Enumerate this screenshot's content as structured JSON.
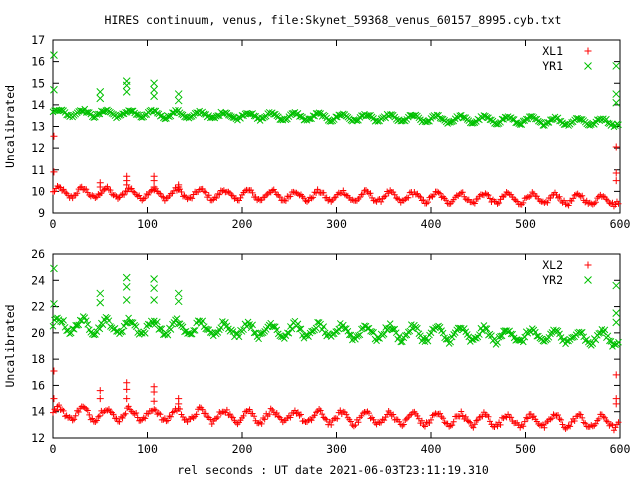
{
  "title": "HIRES continuum, venus, file:Skynet_59368_venus_60157_8995.cyb.txt",
  "xlabel": "rel seconds : UT date 2021-06-03T23:11:19.310",
  "colors": {
    "red": "#ff0000",
    "green": "#00c000"
  },
  "chart_data": [
    {
      "type": "scatter",
      "ylabel": "Uncalibrated",
      "xlim": [
        0,
        600
      ],
      "ylim": [
        9,
        17
      ],
      "x_ticks": [
        0,
        100,
        200,
        300,
        400,
        500,
        600
      ],
      "y_ticks": [
        9,
        10,
        11,
        12,
        13,
        14,
        15,
        16,
        17
      ],
      "legend_position": "top-right",
      "series": [
        {
          "name": "XL1",
          "marker": "plus",
          "color": "#ff0000",
          "model": {
            "base_start": 9.95,
            "base_end": 9.6,
            "amp": 0.22,
            "period": 25
          },
          "spikes": [
            {
              "x": 1,
              "y": [
                12.55,
                10.9
              ]
            },
            {
              "x": 50,
              "y": [
                10.4,
                10.2
              ]
            },
            {
              "x": 78,
              "y": [
                10.7,
                10.5,
                10.3
              ]
            },
            {
              "x": 107,
              "y": [
                10.7,
                10.5,
                10.2
              ]
            },
            {
              "x": 133,
              "y": [
                10.3,
                10.2
              ]
            },
            {
              "x": 596,
              "y": [
                12.05,
                10.85,
                10.5
              ]
            }
          ]
        },
        {
          "name": "YR1",
          "marker": "cross",
          "color": "#00c000",
          "model": {
            "base_start": 13.65,
            "base_end": 13.2,
            "amp": 0.15,
            "period": 25
          },
          "spikes": [
            {
              "x": 1,
              "y": [
                16.3,
                14.7
              ]
            },
            {
              "x": 50,
              "y": [
                14.6,
                14.3
              ]
            },
            {
              "x": 78,
              "y": [
                15.1,
                14.9,
                14.6
              ]
            },
            {
              "x": 107,
              "y": [
                15.0,
                14.7,
                14.4
              ]
            },
            {
              "x": 133,
              "y": [
                14.5,
                14.2
              ]
            },
            {
              "x": 596,
              "y": [
                15.8,
                14.5,
                14.1
              ]
            }
          ]
        }
      ]
    },
    {
      "type": "scatter",
      "ylabel": "Uncalibrated",
      "xlim": [
        0,
        600
      ],
      "ylim": [
        12,
        26
      ],
      "x_ticks": [
        0,
        100,
        200,
        300,
        400,
        500,
        600
      ],
      "y_ticks": [
        12,
        14,
        16,
        18,
        20,
        22,
        24,
        26
      ],
      "legend_position": "top-right",
      "series": [
        {
          "name": "XL2",
          "marker": "plus",
          "color": "#ff0000",
          "model": {
            "base_start": 13.9,
            "base_end": 13.2,
            "amp": 0.45,
            "period": 25
          },
          "spikes": [
            {
              "x": 1,
              "y": [
                17.1,
                15.0
              ]
            },
            {
              "x": 50,
              "y": [
                15.6,
                15.0
              ]
            },
            {
              "x": 78,
              "y": [
                16.2,
                15.7,
                15.0
              ]
            },
            {
              "x": 107,
              "y": [
                15.9,
                15.5,
                14.8
              ]
            },
            {
              "x": 133,
              "y": [
                15.0,
                14.6
              ]
            },
            {
              "x": 596,
              "y": [
                16.8,
                15.0,
                14.6
              ]
            }
          ]
        },
        {
          "name": "YR2",
          "marker": "cross",
          "color": "#00c000",
          "model": {
            "base_start": 20.6,
            "base_end": 19.6,
            "amp": 0.5,
            "period": 25
          },
          "spikes": [
            {
              "x": 1,
              "y": [
                24.9,
                22.2
              ]
            },
            {
              "x": 50,
              "y": [
                23.0,
                22.3
              ]
            },
            {
              "x": 78,
              "y": [
                24.2,
                23.5,
                22.5
              ]
            },
            {
              "x": 107,
              "y": [
                24.1,
                23.4,
                22.5
              ]
            },
            {
              "x": 133,
              "y": [
                23.0,
                22.4
              ]
            },
            {
              "x": 596,
              "y": [
                23.6,
                21.5,
                20.8
              ]
            }
          ]
        }
      ]
    }
  ]
}
